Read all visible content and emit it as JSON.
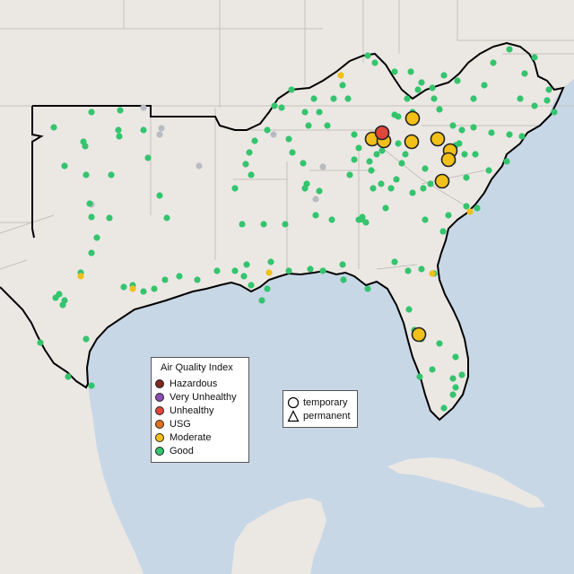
{
  "aqi_legend": {
    "title": "Air Quality Index",
    "categories": [
      {
        "label": "Hazardous",
        "color": "#7e2a1e"
      },
      {
        "label": "Very Unhealthy",
        "color": "#8b4fb0"
      },
      {
        "label": "Unhealthy",
        "color": "#e0463a"
      },
      {
        "label": "USG",
        "color": "#e07020"
      },
      {
        "label": "Moderate",
        "color": "#f2c019"
      },
      {
        "label": "Good",
        "color": "#35c46e"
      }
    ],
    "no_data_color": "#b8bcc2"
  },
  "type_legend": {
    "temporary": "temporary",
    "permanent": "permanent"
  },
  "map_style": {
    "land": "#ebe8e4",
    "water": "#c8d7e6",
    "boundary": "#c4c0bb",
    "outline": "#000000"
  }
}
